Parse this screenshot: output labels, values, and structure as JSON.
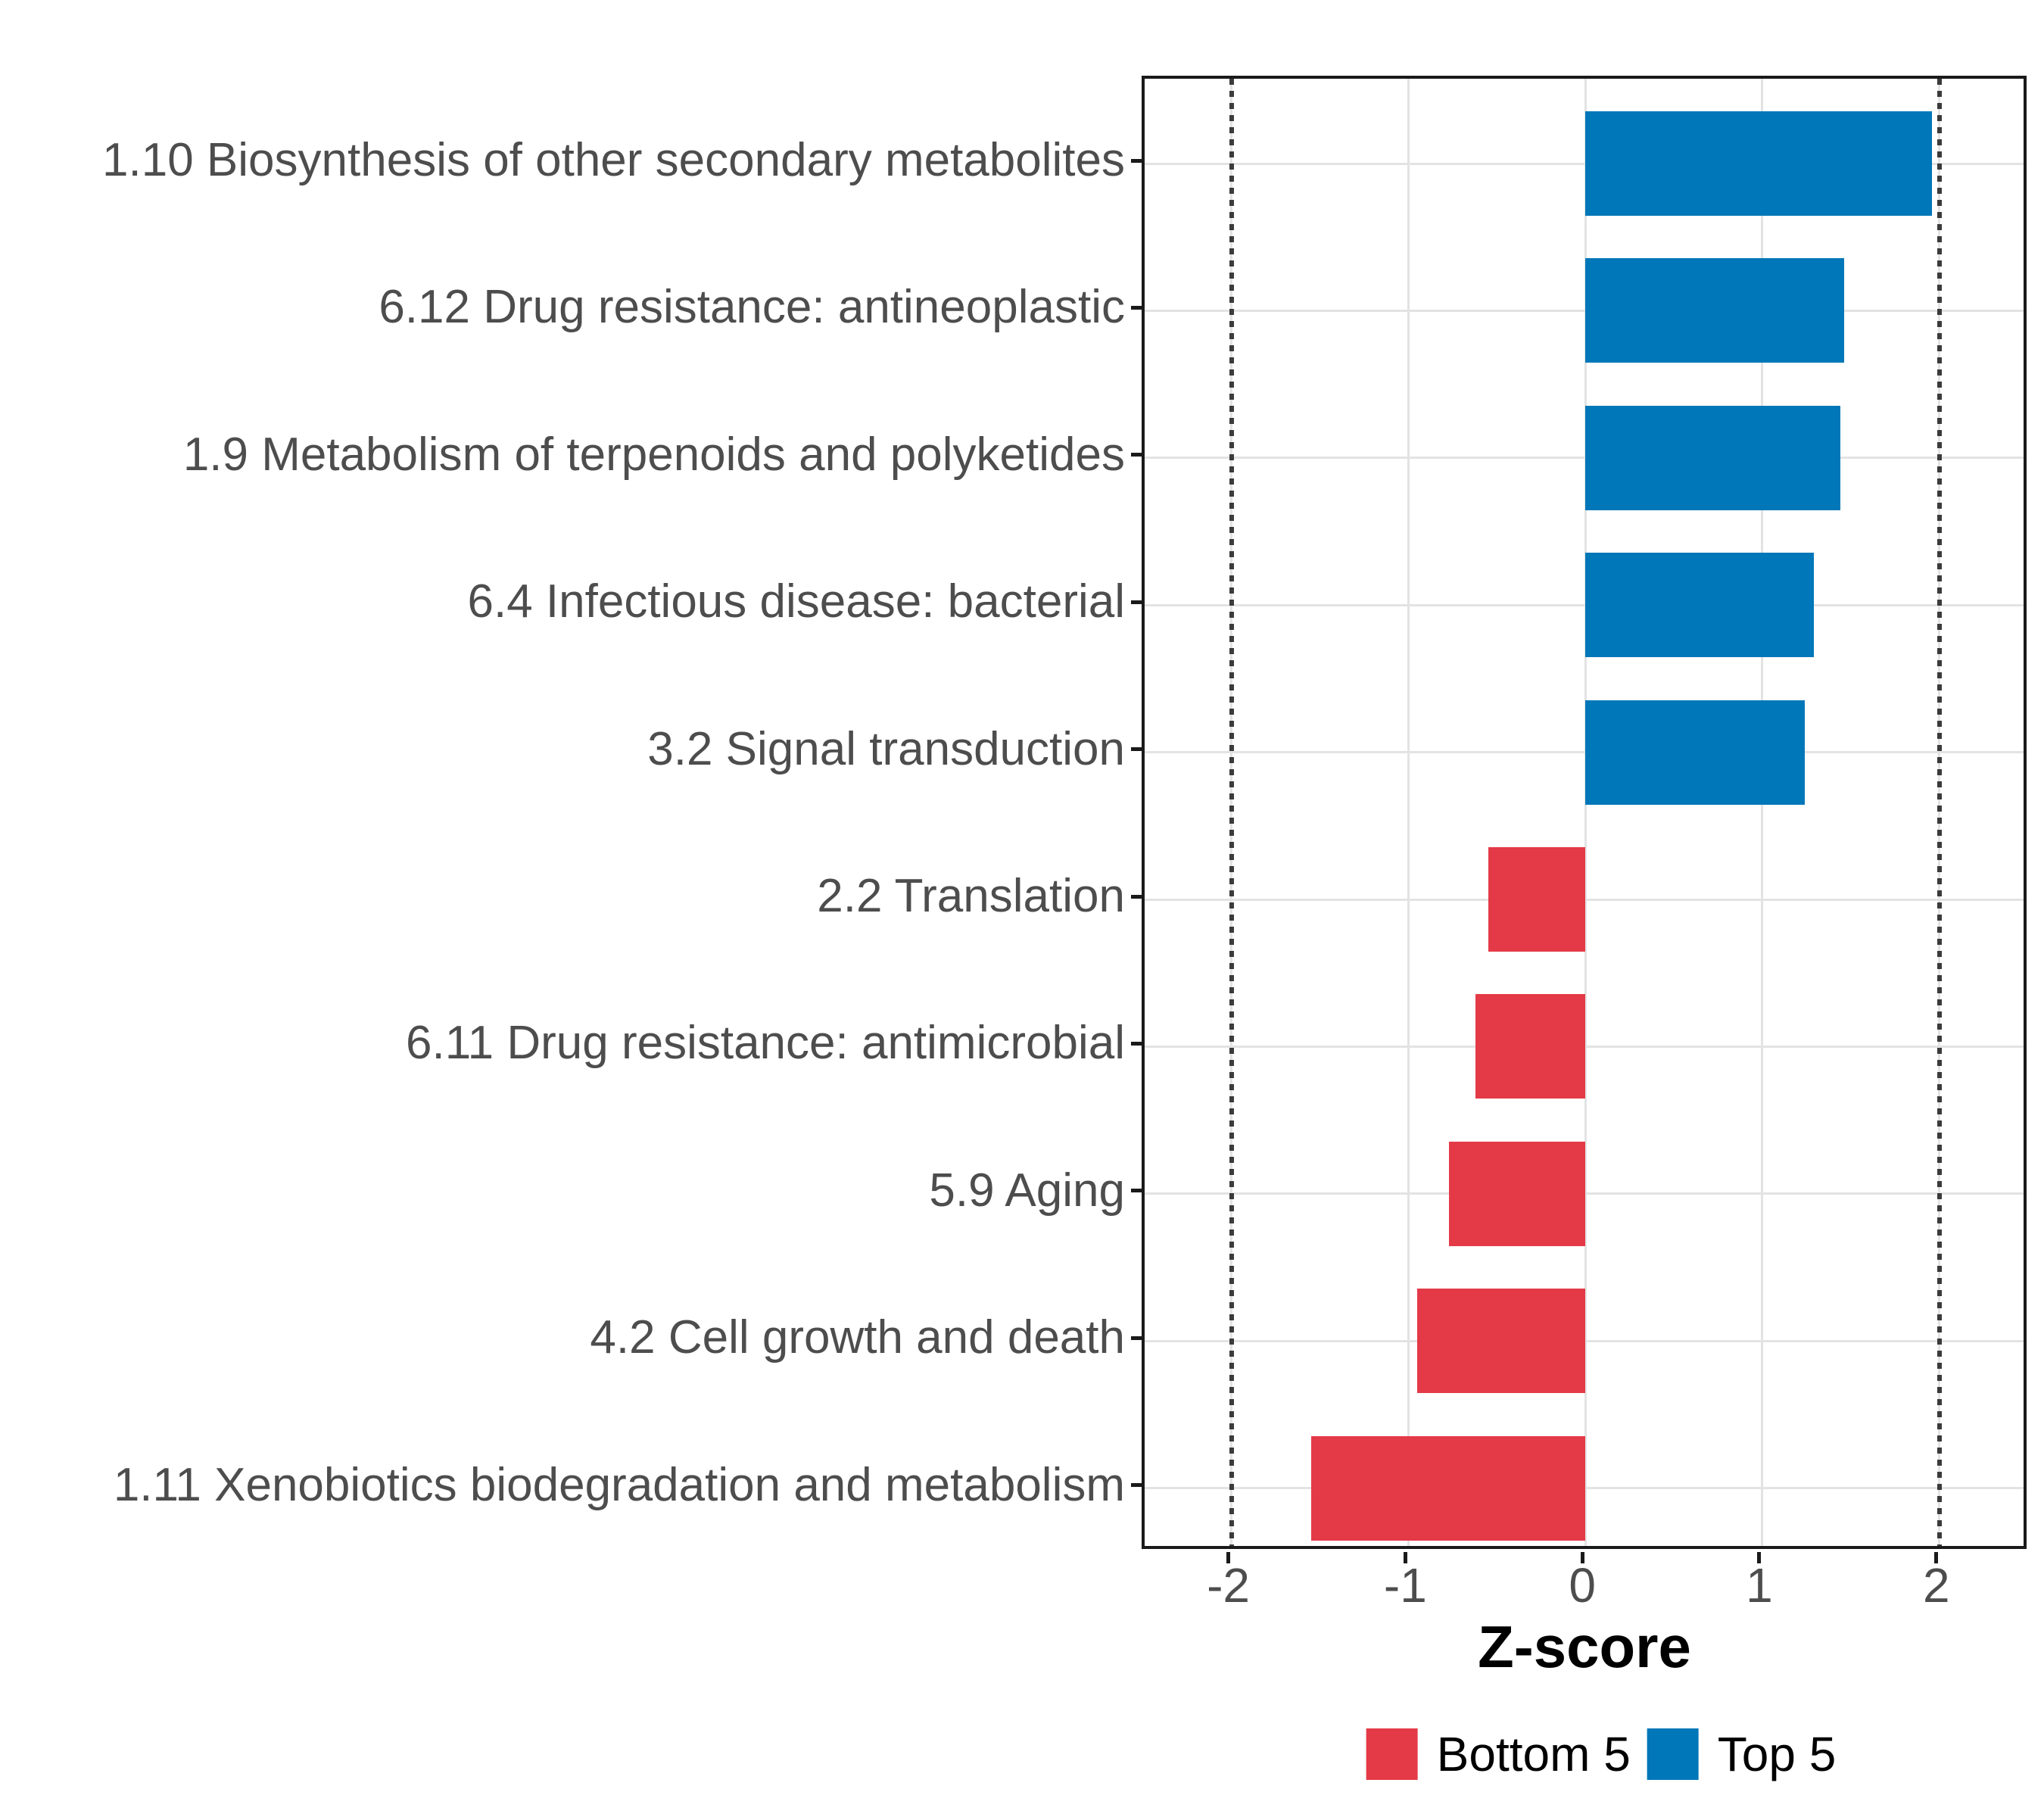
{
  "chart_data": {
    "type": "bar",
    "orientation": "horizontal",
    "title": "",
    "xlabel": "Z-score",
    "xlim": [
      -2.49,
      2.51
    ],
    "xticks": [
      -2,
      -1,
      0,
      1,
      2
    ],
    "grid": true,
    "reference_lines": {
      "style": "dotted",
      "x": [
        -2,
        2
      ]
    },
    "categories": [
      "1.10 Biosynthesis of other secondary metabolites",
      "6.12 Drug resistance: antineoplastic",
      "1.9 Metabolism of terpenoids and polyketides",
      "6.4 Infectious disease: bacterial",
      "3.2 Signal transduction",
      "2.2 Translation",
      "6.11 Drug resistance: antimicrobial",
      "5.9 Aging",
      "4.2 Cell growth and death",
      "1.11 Xenobiotics biodegradation and metabolism"
    ],
    "bars": [
      {
        "label": "1.10 Biosynthesis of other secondary metabolites",
        "value": 1.96,
        "group": "Top 5"
      },
      {
        "label": "6.12 Drug resistance: antineoplastic",
        "value": 1.46,
        "group": "Top 5"
      },
      {
        "label": "1.9 Metabolism of terpenoids and polyketides",
        "value": 1.44,
        "group": "Top 5"
      },
      {
        "label": "6.4 Infectious disease: bacterial",
        "value": 1.29,
        "group": "Top 5"
      },
      {
        "label": "3.2 Signal transduction",
        "value": 1.24,
        "group": "Top 5"
      },
      {
        "label": "2.2 Translation",
        "value": -0.55,
        "group": "Bottom 5"
      },
      {
        "label": "6.11 Drug resistance: antimicrobial",
        "value": -0.62,
        "group": "Bottom 5"
      },
      {
        "label": "5.9 Aging",
        "value": -0.77,
        "group": "Bottom 5"
      },
      {
        "label": "4.2 Cell growth and death",
        "value": -0.95,
        "group": "Bottom 5"
      },
      {
        "label": "1.11 Xenobiotics biodegradation and metabolism",
        "value": -1.55,
        "group": "Bottom 5"
      }
    ],
    "legend": {
      "position": "bottom",
      "items": [
        {
          "label": "Bottom 5",
          "color": "#E43A47"
        },
        {
          "label": "Top 5",
          "color": "#0077B8"
        }
      ]
    },
    "colors": {
      "top5": "#0077B8",
      "bottom5": "#E43A47",
      "grid": "#E3E3E3",
      "axis_text": "#4D4D4D",
      "panel_border": "#1A1A1A",
      "reference_line": "#3B3B3B"
    }
  }
}
